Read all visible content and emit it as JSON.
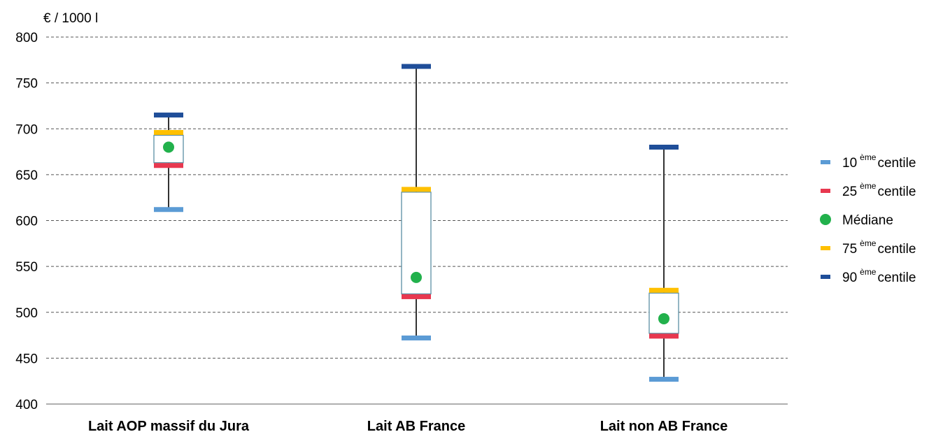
{
  "chart_data": {
    "type": "box",
    "ylabel": "€ / 1000 l",
    "ylim": [
      400,
      800
    ],
    "yticks": [
      400,
      450,
      500,
      550,
      600,
      650,
      700,
      750,
      800
    ],
    "grid": "horizontal-dashed",
    "legend_position": "right",
    "categories": [
      "Lait AOP massif du Jura",
      "Lait AB France",
      "Lait non AB France"
    ],
    "series": [
      {
        "key": "p10",
        "name": "10",
        "suffix_sup": "ème",
        "suffix": "centile",
        "color": "#5B9BD5",
        "marker": "bar",
        "values": [
          612,
          472,
          427
        ]
      },
      {
        "key": "p25",
        "name": "25",
        "suffix_sup": "ème",
        "suffix": "centile",
        "color": "#E8384F",
        "marker": "bar",
        "values": [
          660,
          517,
          474
        ]
      },
      {
        "key": "median",
        "name": "Médiane",
        "suffix_sup": "",
        "suffix": "",
        "color": "#22B14C",
        "marker": "dot",
        "values": [
          680,
          538,
          493
        ]
      },
      {
        "key": "p75",
        "name": "75",
        "suffix_sup": "ème",
        "suffix": "centile",
        "color": "#FFC000",
        "marker": "bar",
        "values": [
          696,
          634,
          524
        ]
      },
      {
        "key": "p90",
        "name": "90",
        "suffix_sup": "ème",
        "suffix": "centile",
        "color": "#1F4E99",
        "marker": "bar",
        "values": [
          715,
          768,
          680
        ]
      }
    ]
  }
}
